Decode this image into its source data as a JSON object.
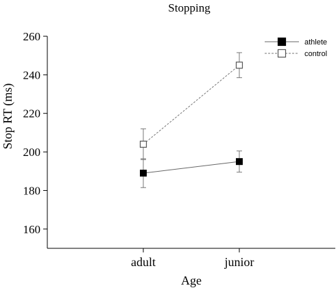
{
  "chart_data": {
    "type": "line",
    "title": "Stopping",
    "xlabel": "Age",
    "ylabel": "Stop RT (ms)",
    "categories": [
      "adult",
      "junior"
    ],
    "ylim": [
      150,
      260
    ],
    "yticks": [
      160,
      180,
      200,
      220,
      240,
      260
    ],
    "grid": false,
    "legend_position": "top-right",
    "series": [
      {
        "name": "athlete",
        "values": [
          189,
          195
        ],
        "error": [
          7.5,
          5.5
        ],
        "marker": "filled-square",
        "line": "solid",
        "color": "#000000",
        "line_color": "#666666"
      },
      {
        "name": "control",
        "values": [
          204,
          245
        ],
        "error": [
          8,
          6.5
        ],
        "marker": "open-square",
        "line": "dashed",
        "color": "#555555",
        "line_color": "#777777"
      }
    ]
  }
}
